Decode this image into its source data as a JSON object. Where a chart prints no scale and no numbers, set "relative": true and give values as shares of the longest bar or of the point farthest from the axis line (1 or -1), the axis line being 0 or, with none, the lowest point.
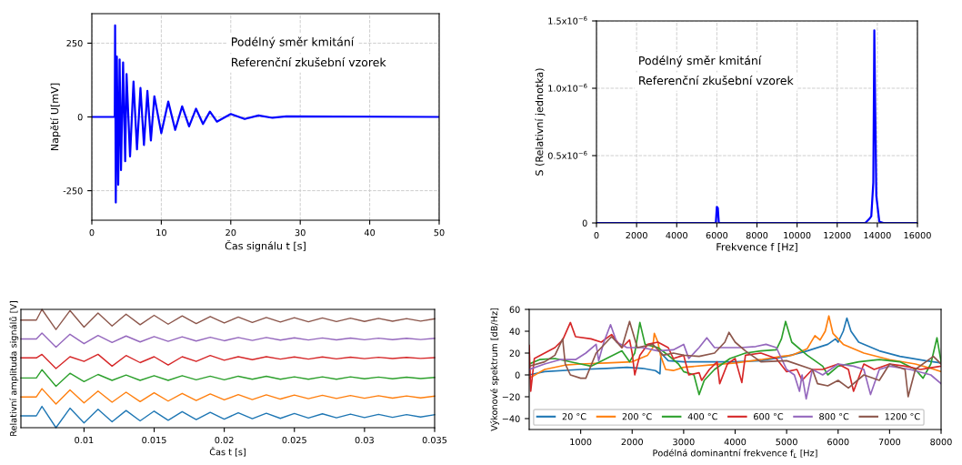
{
  "chart_data": [
    {
      "type": "line",
      "xlabel": "Čas signálu t [s]",
      "ylabel": "Napětí U[mV]",
      "xlim": [
        0,
        50
      ],
      "xticks": [
        0,
        10,
        20,
        30,
        40,
        50
      ],
      "ylim": [
        -350,
        350
      ],
      "yticks": [
        {
          "value": -250,
          "label": "-250"
        },
        0,
        250
      ],
      "grid": true,
      "annotations": [
        "Podélný směr kmitání",
        "Referenční zkušební vzorek"
      ],
      "series": [
        {
          "color": "#0000ff",
          "x": [
            0,
            3.3,
            3.35,
            3.45,
            3.6,
            3.8,
            4.0,
            4.2,
            4.5,
            4.8,
            5,
            5.5,
            6,
            6.5,
            7,
            7.5,
            8,
            8.5,
            9,
            10,
            11,
            12,
            13,
            14,
            15,
            16,
            17,
            18,
            20,
            22,
            24,
            26,
            28,
            50
          ],
          "values": [
            0,
            0,
            310,
            -290,
            205,
            -230,
            195,
            -180,
            185,
            -150,
            145,
            -134,
            120,
            -110,
            98,
            -95,
            88,
            -80,
            70,
            -55,
            52,
            -44,
            36,
            -32,
            28,
            -24,
            18,
            -16,
            10,
            -7,
            5,
            -3,
            2,
            0
          ]
        }
      ]
    },
    {
      "type": "line",
      "xlabel": "Frekvence f [Hz]",
      "ylabel": "S (Relativní jednotka)",
      "xlim": [
        0,
        16000
      ],
      "xticks": [
        0,
        2000,
        4000,
        6000,
        8000,
        10000,
        12000,
        14000,
        16000
      ],
      "ylim": [
        0,
        1.5e-06
      ],
      "yticks": [
        0,
        {
          "value": 5e-07,
          "label": "0.5x10$^{−6}$"
        },
        {
          "value": 1e-06,
          "label": "1.0x10$^{−6}$"
        },
        {
          "value": 1.5e-06,
          "label": "1.5x10$^{−6}$"
        }
      ],
      "grid": true,
      "annotations": [
        "Podélný směr kmitání",
        "Referenční zkušební vzorek"
      ],
      "series": [
        {
          "color": "#0000ff",
          "x": [
            0,
            5950,
            6000,
            6050,
            6100,
            13400,
            13600,
            13700,
            13800,
            13850,
            13900,
            13950,
            14100,
            14300,
            16000
          ],
          "values": [
            0,
            0,
            1.2e-07,
            1.1e-07,
            0,
            0,
            3e-08,
            5e-08,
            3e-07,
            1.43e-06,
            8e-07,
            2e-07,
            1e-08,
            0,
            0
          ]
        }
      ]
    },
    {
      "type": "line",
      "relative": true,
      "tick_labels": "x",
      "xlabel": "Čas t [s]",
      "ylabel": "Relativní amplituda signálů [V]",
      "xlim": [
        0.0055,
        0.035
      ],
      "xticks": [
        0.01,
        0.015,
        0.02,
        0.025,
        0.03,
        0.035
      ],
      "x": [
        0.0055,
        0.0066,
        0.007,
        0.008,
        0.009,
        0.01,
        0.011,
        0.012,
        0.013,
        0.014,
        0.015,
        0.016,
        0.017,
        0.018,
        0.019,
        0.02,
        0.021,
        0.022,
        0.023,
        0.024,
        0.025,
        0.026,
        0.027,
        0.028,
        0.029,
        0.03,
        0.031,
        0.032,
        0.033,
        0.034,
        0.035
      ],
      "series": [
        {
          "color": "#1f77b4",
          "values": [
            0.1,
            0.1,
            0.18,
            0.0,
            0.165,
            0.04,
            0.155,
            0.05,
            0.145,
            0.058,
            0.14,
            0.063,
            0.135,
            0.068,
            0.13,
            0.072,
            0.126,
            0.076,
            0.122,
            0.079,
            0.12,
            0.082,
            0.117,
            0.084,
            0.115,
            0.086,
            0.113,
            0.088,
            0.111,
            0.09,
            0.11
          ]
        },
        {
          "color": "#ff7f0e",
          "values": [
            0.26,
            0.26,
            0.33,
            0.2,
            0.32,
            0.21,
            0.31,
            0.215,
            0.3,
            0.22,
            0.295,
            0.225,
            0.29,
            0.23,
            0.285,
            0.235,
            0.28,
            0.238,
            0.278,
            0.242,
            0.276,
            0.245,
            0.274,
            0.247,
            0.272,
            0.249,
            0.27,
            0.25,
            0.268,
            0.252,
            0.267
          ]
        },
        {
          "color": "#2ca02c",
          "values": [
            0.42,
            0.42,
            0.49,
            0.35,
            0.46,
            0.39,
            0.45,
            0.4,
            0.445,
            0.4,
            0.44,
            0.4,
            0.44,
            0.405,
            0.435,
            0.405,
            0.435,
            0.41,
            0.435,
            0.41,
            0.43,
            0.41,
            0.43,
            0.41,
            0.43,
            0.413,
            0.428,
            0.413,
            0.427,
            0.415,
            0.425
          ]
        },
        {
          "color": "#d62728",
          "values": [
            0.59,
            0.59,
            0.62,
            0.5,
            0.6,
            0.56,
            0.62,
            0.52,
            0.61,
            0.55,
            0.6,
            0.53,
            0.6,
            0.56,
            0.61,
            0.57,
            0.6,
            0.575,
            0.6,
            0.58,
            0.598,
            0.58,
            0.598,
            0.582,
            0.596,
            0.584,
            0.595,
            0.585,
            0.594,
            0.586,
            0.592
          ]
        },
        {
          "color": "#9467bd",
          "values": [
            0.75,
            0.75,
            0.8,
            0.68,
            0.79,
            0.71,
            0.78,
            0.72,
            0.775,
            0.725,
            0.77,
            0.73,
            0.768,
            0.733,
            0.765,
            0.735,
            0.763,
            0.738,
            0.762,
            0.74,
            0.76,
            0.741,
            0.759,
            0.742,
            0.758,
            0.743,
            0.757,
            0.744,
            0.756,
            0.745,
            0.755
          ]
        },
        {
          "color": "#8c564b",
          "values": [
            0.91,
            0.91,
            1.0,
            0.83,
            0.99,
            0.85,
            0.97,
            0.86,
            0.96,
            0.87,
            0.95,
            0.875,
            0.945,
            0.88,
            0.94,
            0.885,
            0.935,
            0.89,
            0.932,
            0.893,
            0.93,
            0.895,
            0.928,
            0.897,
            0.926,
            0.898,
            0.924,
            0.9,
            0.922,
            0.901,
            0.92
          ]
        }
      ]
    },
    {
      "type": "line",
      "xlabel": "Podélná dominantní frekvence f$_{L}$ [Hz]",
      "ylabel": "Výkonové spektrum [dB/Hz]",
      "xlim": [
        0,
        8000
      ],
      "xticks": [
        1000,
        2000,
        3000,
        4000,
        5000,
        6000,
        7000,
        8000
      ],
      "ylim": [
        -50,
        60
      ],
      "yticks": [
        {
          "value": -40,
          "label": "−40"
        },
        {
          "value": -20,
          "label": "−20"
        },
        0,
        20,
        40,
        60
      ],
      "legend": "bottom left",
      "series": [
        {
          "name": "20 °C",
          "color": "#1f77b4",
          "x": [
            0,
            300,
            1000,
            1500,
            1900,
            2200,
            2450,
            2540,
            2560,
            2700,
            3000,
            4000,
            4500,
            5000,
            5400,
            5800,
            5950,
            6000,
            6100,
            6170,
            6250,
            6400,
            6800,
            7200,
            7700,
            8000
          ],
          "values": [
            0,
            3,
            5,
            6,
            7,
            6,
            4,
            1,
            20,
            13,
            12,
            12,
            13,
            17,
            22,
            28,
            33,
            30,
            40,
            52,
            40,
            30,
            22,
            17,
            13,
            11
          ]
        },
        {
          "name": "200 °C",
          "color": "#ff7f0e",
          "x": [
            0,
            300,
            700,
            1000,
            1500,
            2000,
            2300,
            2400,
            2430,
            2500,
            2550,
            2650,
            2800,
            3000,
            3500,
            4000,
            4500,
            4900,
            5100,
            5400,
            5550,
            5650,
            5750,
            5820,
            5900,
            6100,
            6500,
            7000,
            7500,
            7800,
            8000
          ],
          "values": [
            -3,
            5,
            9,
            10,
            11,
            12,
            18,
            25,
            38,
            30,
            18,
            5,
            4,
            7,
            9,
            11,
            14,
            17,
            18,
            24,
            36,
            32,
            40,
            54,
            38,
            28,
            20,
            14,
            10,
            6,
            3
          ]
        },
        {
          "name": "400 °C",
          "color": "#2ca02c",
          "x": [
            0,
            200,
            500,
            1000,
            1200,
            1500,
            1800,
            1950,
            2050,
            2150,
            2250,
            2500,
            2700,
            2900,
            3000,
            3200,
            3300,
            3400,
            3600,
            3900,
            4200,
            4500,
            4800,
            4900,
            4980,
            5100,
            5400,
            5700,
            5800,
            6000,
            6400,
            6800,
            7200,
            7500,
            7650,
            7800,
            7920,
            8000
          ],
          "values": [
            10,
            14,
            15,
            10,
            8,
            15,
            22,
            12,
            20,
            48,
            28,
            25,
            18,
            10,
            3,
            0,
            -18,
            -5,
            5,
            15,
            20,
            22,
            23,
            33,
            49,
            30,
            18,
            8,
            0,
            8,
            12,
            14,
            12,
            5,
            -3,
            10,
            34,
            12
          ]
        },
        {
          "name": "600 °C",
          "color": "#d62728",
          "x": [
            0,
            30,
            100,
            300,
            500,
            650,
            800,
            900,
            1200,
            1400,
            1600,
            1800,
            1950,
            2000,
            2050,
            2150,
            2300,
            2500,
            2700,
            2800,
            3000,
            3100,
            3300,
            3350,
            3500,
            3650,
            3700,
            3850,
            4000,
            4130,
            4200,
            4500,
            4800,
            5000,
            5200,
            5300,
            5500,
            5700,
            6000,
            6200,
            6300,
            6500,
            6700,
            7000,
            7300,
            7600,
            8000
          ],
          "values": [
            27,
            -15,
            15,
            20,
            25,
            32,
            48,
            35,
            33,
            30,
            37,
            25,
            32,
            20,
            0,
            18,
            28,
            30,
            25,
            15,
            18,
            0,
            2,
            -5,
            5,
            12,
            -8,
            10,
            15,
            -7,
            18,
            20,
            15,
            3,
            5,
            -5,
            5,
            5,
            10,
            5,
            -15,
            10,
            5,
            10,
            8,
            5,
            8
          ]
        },
        {
          "name": "800 °C",
          "color": "#9467bd",
          "x": [
            0,
            300,
            600,
            900,
            1100,
            1300,
            1350,
            1450,
            1580,
            1700,
            1900,
            2200,
            2500,
            2800,
            3000,
            3100,
            3300,
            3450,
            3600,
            3800,
            4100,
            4400,
            4600,
            4800,
            5000,
            5150,
            5250,
            5300,
            5380,
            5500,
            5700,
            6000,
            6300,
            6500,
            6630,
            6800,
            7000,
            7400,
            7800,
            8000
          ],
          "values": [
            5,
            10,
            14,
            14,
            20,
            28,
            13,
            30,
            46,
            30,
            25,
            25,
            22,
            23,
            28,
            15,
            25,
            34,
            25,
            25,
            25,
            26,
            28,
            25,
            5,
            0,
            -15,
            0,
            -22,
            5,
            0,
            10,
            8,
            5,
            -18,
            5,
            8,
            5,
            0,
            -8
          ]
        },
        {
          "name": "1200 °C",
          "color": "#8c564b",
          "x": [
            0,
            300,
            500,
            650,
            700,
            800,
            1000,
            1100,
            1300,
            1500,
            1600,
            1800,
            1950,
            2100,
            2400,
            2600,
            2800,
            3000,
            3300,
            3600,
            3800,
            3880,
            4000,
            4200,
            4500,
            5000,
            5500,
            5600,
            5800,
            6000,
            6200,
            6500,
            6800,
            7000,
            7300,
            7360,
            7500,
            7850,
            8000
          ],
          "values": [
            8,
            12,
            18,
            33,
            10,
            0,
            -3,
            -3,
            20,
            30,
            35,
            25,
            49,
            25,
            28,
            18,
            20,
            18,
            17,
            20,
            30,
            39,
            30,
            22,
            12,
            13,
            5,
            -8,
            -10,
            -5,
            -12,
            0,
            -5,
            10,
            5,
            -20,
            5,
            17,
            10
          ]
        }
      ]
    }
  ]
}
